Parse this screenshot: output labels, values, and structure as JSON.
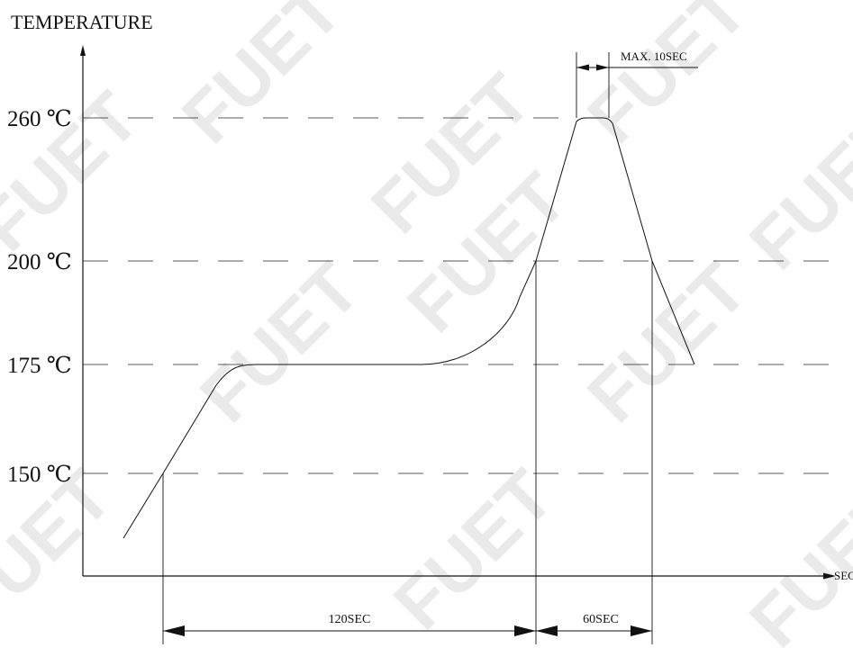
{
  "watermark": "FUET",
  "chart_data": {
    "type": "line",
    "title": "",
    "ylabel": "TEMPERATURE",
    "xlabel": "SEC",
    "y_ticks": [
      {
        "value": 260,
        "label": "260 ℃"
      },
      {
        "value": 200,
        "label": "200 ℃"
      },
      {
        "value": 175,
        "label": "175 ℃"
      },
      {
        "value": 150,
        "label": "150 ℃"
      }
    ],
    "series": [
      {
        "values_note": "",
        "x": [
          0,
          25,
          40,
          65,
          110,
          120,
          140,
          150,
          155,
          165,
          175,
          180,
          190
        ],
        "y": [
          138,
          150,
          170,
          175,
          175,
          180,
          200,
          245,
          260,
          260,
          245,
          200,
          175
        ]
      }
    ],
    "annotations": [
      {
        "label": "120SEC",
        "from_x": 25,
        "to_x": 145
      },
      {
        "label": "60SEC",
        "from_x": 145,
        "to_x": 205
      },
      {
        "label": "MAX. 10SEC",
        "from_x": 157,
        "to_x": 167
      }
    ],
    "grid": "dashed horizontal at ticks"
  }
}
